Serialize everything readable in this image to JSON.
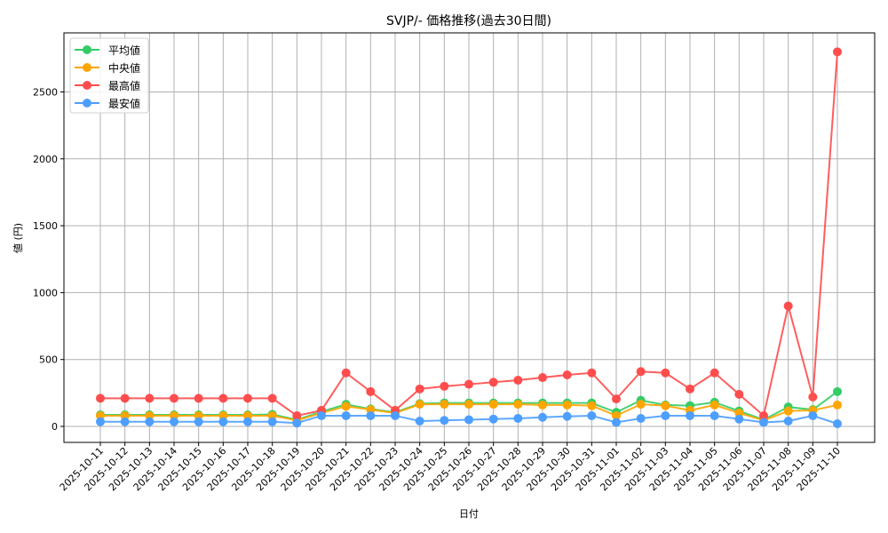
{
  "chart_data": {
    "type": "line",
    "title": "SVJP/- 価格推移(過去30日間)",
    "xlabel": "日付",
    "ylabel": "値 (円)",
    "ylim": [
      -120,
      2930
    ],
    "yticks": [
      0,
      500,
      1000,
      1500,
      2000,
      2500
    ],
    "grid": true,
    "legend_position": "upper left",
    "x": [
      "2025-10-11",
      "2025-10-12",
      "2025-10-13",
      "2025-10-14",
      "2025-10-15",
      "2025-10-16",
      "2025-10-17",
      "2025-10-18",
      "2025-10-19",
      "2025-10-20",
      "2025-10-21",
      "2025-10-22",
      "2025-10-23",
      "2025-10-24",
      "2025-10-25",
      "2025-10-26",
      "2025-10-27",
      "2025-10-28",
      "2025-10-29",
      "2025-10-30",
      "2025-10-31",
      "2025-11-01",
      "2025-11-02",
      "2025-11-03",
      "2025-11-04",
      "2025-11-05",
      "2025-11-06",
      "2025-11-07",
      "2025-11-08",
      "2025-11-09",
      "2025-11-10"
    ],
    "series": [
      {
        "name": "平均値",
        "color": "#33cc66",
        "values": [
          86,
          86,
          86,
          86,
          86,
          86,
          86,
          90,
          50,
          110,
          165,
          130,
          105,
          170,
          175,
          175,
          175,
          175,
          175,
          175,
          175,
          105,
          195,
          160,
          155,
          180,
          115,
          50,
          145,
          125,
          260
        ]
      },
      {
        "name": "中央値",
        "color": "#ffa500",
        "values": [
          80,
          80,
          80,
          80,
          80,
          80,
          80,
          80,
          45,
          100,
          150,
          125,
          100,
          165,
          165,
          165,
          165,
          165,
          160,
          160,
          155,
          80,
          165,
          155,
          120,
          160,
          100,
          45,
          115,
          120,
          160
        ]
      },
      {
        "name": "最高値",
        "color": "#ff4d4d",
        "values": [
          210,
          210,
          210,
          210,
          210,
          210,
          210,
          210,
          80,
          120,
          400,
          260,
          120,
          280,
          300,
          315,
          330,
          345,
          365,
          385,
          400,
          205,
          410,
          400,
          280,
          400,
          240,
          80,
          900,
          220,
          2800
        ]
      },
      {
        "name": "最安値",
        "color": "#4d9fff",
        "values": [
          35,
          35,
          35,
          35,
          35,
          35,
          35,
          35,
          25,
          80,
          80,
          80,
          80,
          40,
          45,
          50,
          55,
          60,
          68,
          75,
          80,
          30,
          60,
          80,
          80,
          80,
          55,
          30,
          40,
          80,
          20
        ]
      }
    ]
  }
}
